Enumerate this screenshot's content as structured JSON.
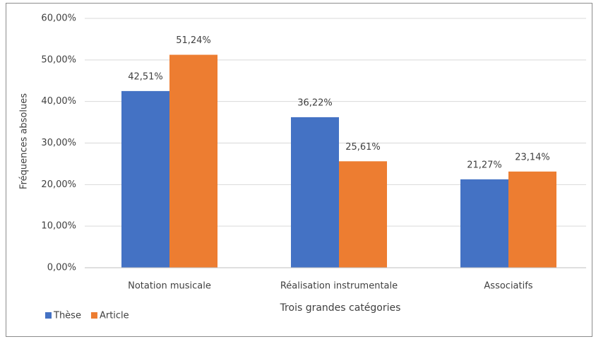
{
  "chart_data": {
    "type": "bar",
    "categories": [
      "Notation musicale",
      "Réalisation instrumentale",
      "Associatifs"
    ],
    "series": [
      {
        "name": "Thèse",
        "color": "#4472c4",
        "values": [
          42.51,
          36.22,
          21.27
        ],
        "value_labels": [
          "42,51%",
          "36,22%",
          "21,27%"
        ]
      },
      {
        "name": "Article",
        "color": "#ed7d31",
        "values": [
          51.24,
          25.61,
          23.14
        ],
        "value_labels": [
          "51,24%",
          "25,61%",
          "23,14%"
        ]
      }
    ],
    "ylabel": "Fréquences absolues",
    "xlabel": "Trois grandes catégories",
    "ylim": [
      0,
      60
    ],
    "yticks": [
      {
        "value": 0,
        "label": "0,00%"
      },
      {
        "value": 10,
        "label": "10,00%"
      },
      {
        "value": 20,
        "label": "20,00%"
      },
      {
        "value": 30,
        "label": "30,00%"
      },
      {
        "value": 40,
        "label": "40,00%"
      },
      {
        "value": 50,
        "label": "50,00%"
      },
      {
        "value": 60,
        "label": "60,00%"
      }
    ],
    "grid": true,
    "legend": "bottom-left"
  }
}
